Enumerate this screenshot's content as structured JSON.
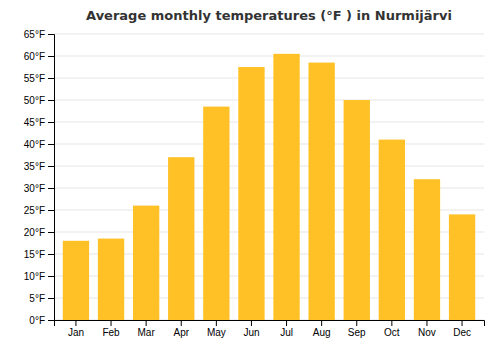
{
  "chart_data": {
    "type": "bar",
    "title": "Average monthly temperatures (°F ) in Nurmijärvi",
    "categories": [
      "Jan",
      "Feb",
      "Mar",
      "Apr",
      "May",
      "Jun",
      "Jul",
      "Aug",
      "Sep",
      "Oct",
      "Nov",
      "Dec"
    ],
    "values": [
      18,
      18.5,
      26,
      37,
      48.5,
      57.5,
      60.5,
      58.5,
      50,
      41,
      32,
      24
    ],
    "color": "#FFC125",
    "ylim": [
      0,
      65
    ],
    "yticks": [
      {
        "value": 0,
        "label": "0°F"
      },
      {
        "value": 5,
        "label": "5°F"
      },
      {
        "value": 10,
        "label": "10°F"
      },
      {
        "value": 15,
        "label": "15°F"
      },
      {
        "value": 20,
        "label": "20°F"
      },
      {
        "value": 25,
        "label": "25°F"
      },
      {
        "value": 30,
        "label": "30°F"
      },
      {
        "value": 35,
        "label": "35°F"
      },
      {
        "value": 40,
        "label": "40°F"
      },
      {
        "value": 45,
        "label": "45°F"
      },
      {
        "value": 50,
        "label": "50°F"
      },
      {
        "value": 55,
        "label": "55°F"
      },
      {
        "value": 60,
        "label": "60°F"
      },
      {
        "value": 65,
        "label": "65°F"
      }
    ],
    "grid": true
  }
}
